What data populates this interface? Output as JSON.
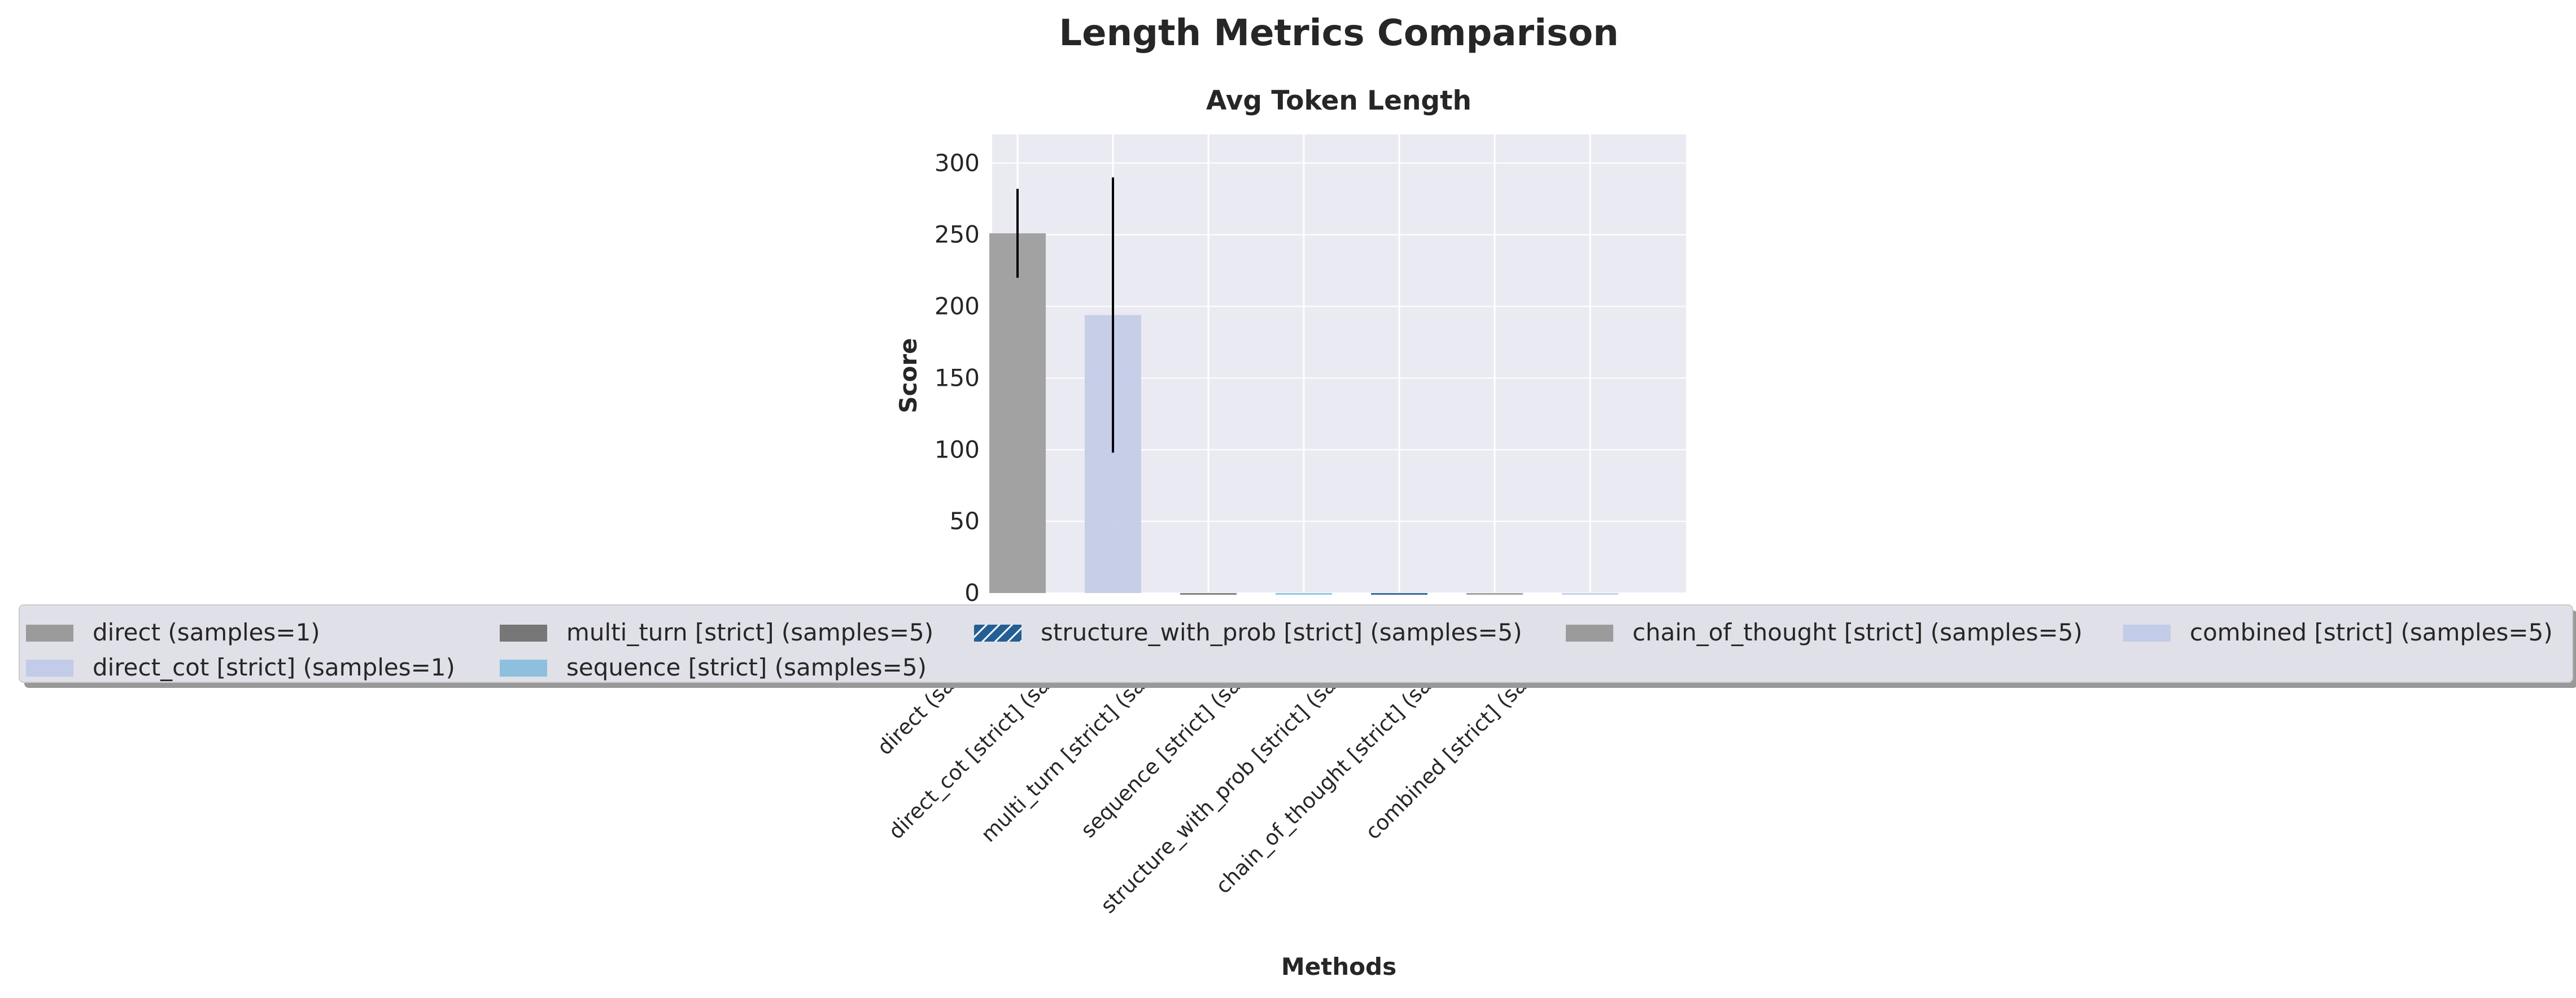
{
  "figure_title": "Length Metrics Comparison",
  "chart_data": {
    "type": "bar",
    "title": "Avg Token Length",
    "xlabel": "Methods",
    "ylabel": "Score",
    "ylim": [
      0,
      320
    ],
    "yticks": [
      0,
      50,
      100,
      150,
      200,
      250,
      300
    ],
    "categories": [
      "direct (samples=1)",
      "direct_cot [strict] (samples=1)",
      "multi_turn [strict] (samples=5)",
      "sequence [strict] (samples=5)",
      "structure_with_prob [strict] (samples=5)",
      "chain_of_thought [strict] (samples=5)",
      "combined [strict] (samples=5)"
    ],
    "values": [
      251,
      194,
      0,
      0,
      0,
      0,
      0
    ],
    "errors": [
      31,
      96,
      0,
      0,
      0,
      0,
      0
    ],
    "colors": [
      "#9b9b9b",
      "#c2cbe7",
      "#777777",
      "#8ebfdd",
      "#245f94",
      "#9b9b9b",
      "#c2cbe7"
    ],
    "grid": true,
    "legend_position": "lower-center, overlapping plot"
  },
  "legend": {
    "items": [
      {
        "label": "direct (samples=1)",
        "color": "#9b9b9b",
        "pattern": "solid"
      },
      {
        "label": "direct_cot [strict] (samples=1)",
        "color": "#c2cbe7",
        "pattern": "solid"
      },
      {
        "label": "multi_turn [strict] (samples=5)",
        "color": "#777777",
        "pattern": "solid"
      },
      {
        "label": "sequence [strict] (samples=5)",
        "color": "#8ebfdd",
        "pattern": "solid"
      },
      {
        "label": "structure_with_prob [strict] (samples=5)",
        "color": "#245f94",
        "pattern": "hatch"
      },
      {
        "label": "chain_of_thought [strict] (samples=5)",
        "color": "#9b9b9b",
        "pattern": "solid"
      },
      {
        "label": "combined [strict] (samples=5)",
        "color": "#c2cbe7",
        "pattern": "solid"
      }
    ]
  }
}
